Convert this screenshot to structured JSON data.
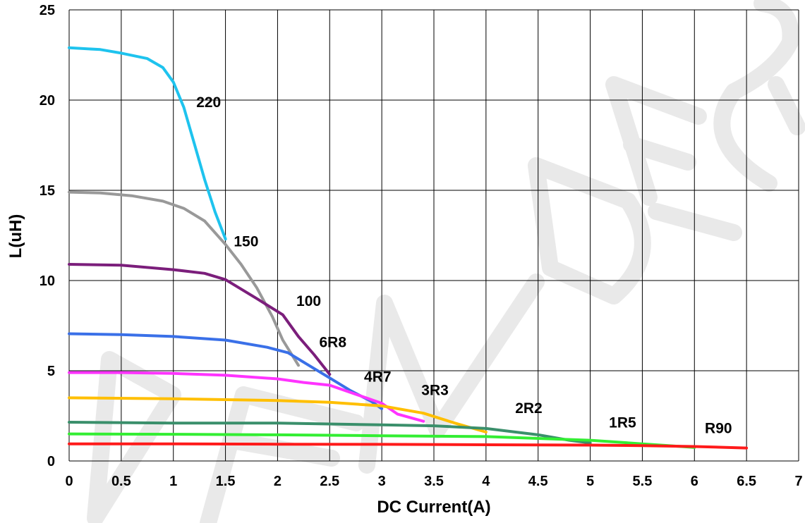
{
  "chart_data": {
    "type": "line",
    "title": "",
    "xlabel": "DC Current(A)",
    "ylabel": "L(uH)",
    "xlim": [
      0,
      7
    ],
    "ylim": [
      0,
      25
    ],
    "x_ticks": [
      "0",
      "0.5",
      "1",
      "1.5",
      "2",
      "2.5",
      "3",
      "3.5",
      "4",
      "4.5",
      "5",
      "5.5",
      "6",
      "6.5",
      "7"
    ],
    "y_ticks": [
      "0",
      "5",
      "10",
      "15",
      "20",
      "25"
    ],
    "grid": true,
    "legend": "none (series labeled directly on chart)",
    "series": [
      {
        "name": "220",
        "color": "#1ec3ee",
        "label_at": [
          1.22,
          19.6
        ],
        "points": [
          [
            0,
            22.9
          ],
          [
            0.3,
            22.8
          ],
          [
            0.5,
            22.6
          ],
          [
            0.75,
            22.3
          ],
          [
            0.9,
            21.8
          ],
          [
            1.0,
            21.0
          ],
          [
            1.1,
            19.6
          ],
          [
            1.2,
            17.6
          ],
          [
            1.3,
            15.6
          ],
          [
            1.4,
            13.8
          ],
          [
            1.5,
            12.3
          ]
        ]
      },
      {
        "name": "150",
        "color": "#999999",
        "label_at": [
          1.58,
          11.9
        ],
        "points": [
          [
            0,
            14.9
          ],
          [
            0.3,
            14.85
          ],
          [
            0.6,
            14.7
          ],
          [
            0.9,
            14.4
          ],
          [
            1.1,
            14.0
          ],
          [
            1.3,
            13.3
          ],
          [
            1.5,
            12.0
          ],
          [
            1.65,
            10.9
          ],
          [
            1.8,
            9.6
          ],
          [
            1.95,
            8.0
          ],
          [
            2.05,
            6.7
          ],
          [
            2.2,
            5.3
          ]
        ]
      },
      {
        "name": "100",
        "color": "#7b1e7b",
        "label_at": [
          2.18,
          8.6
        ],
        "points": [
          [
            0,
            10.9
          ],
          [
            0.5,
            10.85
          ],
          [
            1.0,
            10.6
          ],
          [
            1.3,
            10.4
          ],
          [
            1.5,
            10.05
          ],
          [
            1.8,
            9.0
          ],
          [
            2.05,
            8.1
          ],
          [
            2.2,
            6.9
          ],
          [
            2.35,
            5.9
          ],
          [
            2.5,
            4.8
          ]
        ]
      },
      {
        "name": "6R8",
        "color": "#3a70e8",
        "label_at": [
          2.4,
          6.3
        ],
        "points": [
          [
            0,
            7.05
          ],
          [
            0.5,
            7.0
          ],
          [
            1.0,
            6.9
          ],
          [
            1.5,
            6.7
          ],
          [
            1.9,
            6.3
          ],
          [
            2.1,
            6.0
          ],
          [
            2.3,
            5.3
          ],
          [
            2.5,
            4.6
          ],
          [
            2.7,
            3.9
          ],
          [
            2.9,
            3.3
          ],
          [
            3.0,
            2.9
          ]
        ]
      },
      {
        "name": "4R7",
        "color": "#ff33ff",
        "label_at": [
          2.83,
          4.4
        ],
        "points": [
          [
            0,
            4.9
          ],
          [
            0.5,
            4.9
          ],
          [
            1.0,
            4.85
          ],
          [
            1.5,
            4.75
          ],
          [
            2.0,
            4.55
          ],
          [
            2.25,
            4.35
          ],
          [
            2.5,
            4.2
          ],
          [
            2.75,
            3.7
          ],
          [
            3.0,
            3.2
          ],
          [
            3.15,
            2.6
          ],
          [
            3.4,
            2.2
          ]
        ]
      },
      {
        "name": "3R3",
        "color": "#ffbf00",
        "label_at": [
          3.38,
          3.65
        ],
        "points": [
          [
            0,
            3.5
          ],
          [
            1.0,
            3.45
          ],
          [
            1.5,
            3.4
          ],
          [
            2.0,
            3.35
          ],
          [
            2.5,
            3.25
          ],
          [
            3.0,
            3.05
          ],
          [
            3.4,
            2.65
          ],
          [
            3.7,
            2.1
          ],
          [
            4.0,
            1.6
          ]
        ]
      },
      {
        "name": "2R2",
        "color": "#3a8f6b",
        "label_at": [
          4.28,
          2.65
        ],
        "points": [
          [
            0,
            2.15
          ],
          [
            1.0,
            2.1
          ],
          [
            2.0,
            2.1
          ],
          [
            3.0,
            2.0
          ],
          [
            3.5,
            1.95
          ],
          [
            4.0,
            1.8
          ],
          [
            4.5,
            1.45
          ],
          [
            4.8,
            1.15
          ],
          [
            5.0,
            1.0
          ]
        ]
      },
      {
        "name": "1R5",
        "color": "#33ee33",
        "label_at": [
          5.18,
          1.85
        ],
        "points": [
          [
            0,
            1.5
          ],
          [
            1.0,
            1.48
          ],
          [
            2.0,
            1.45
          ],
          [
            3.0,
            1.4
          ],
          [
            4.0,
            1.35
          ],
          [
            5.0,
            1.15
          ],
          [
            5.5,
            0.95
          ],
          [
            6.0,
            0.75
          ]
        ]
      },
      {
        "name": "R90",
        "color": "#ff1a1a",
        "label_at": [
          6.1,
          1.55
        ],
        "points": [
          [
            0,
            0.95
          ],
          [
            1.0,
            0.95
          ],
          [
            2.0,
            0.93
          ],
          [
            3.0,
            0.92
          ],
          [
            4.0,
            0.9
          ],
          [
            5.0,
            0.88
          ],
          [
            5.5,
            0.85
          ],
          [
            6.0,
            0.8
          ],
          [
            6.5,
            0.72
          ]
        ]
      }
    ]
  }
}
